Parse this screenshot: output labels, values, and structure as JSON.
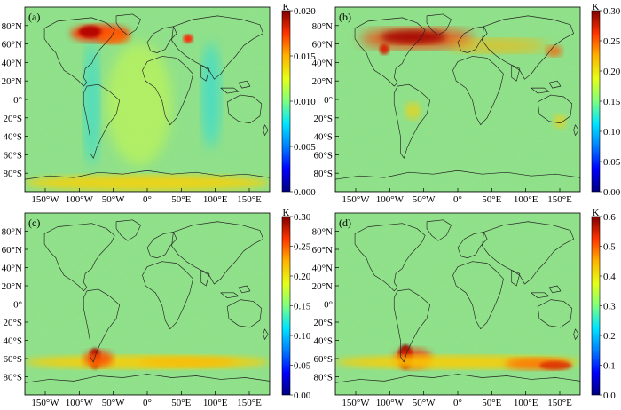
{
  "colormap": [
    "#00007f",
    "#0000ff",
    "#007fff",
    "#00e5ff",
    "#7fff7f",
    "#e5ff19",
    "#ffb300",
    "#ff3300",
    "#7f0000"
  ],
  "colors": {
    "background_field": "#8ee08a",
    "coastline": "#222222",
    "frame": "#000000"
  },
  "lat_ticks": [
    "80°N",
    "60°N",
    "40°N",
    "20°N",
    "0°",
    "20°S",
    "40°S",
    "60°S",
    "80°S"
  ],
  "lon_ticks": [
    "150°W",
    "100°W",
    "50°W",
    "0°",
    "50°E",
    "100°E",
    "150°E"
  ],
  "panels": [
    {
      "id": "a",
      "label": "(a)",
      "unit": "K",
      "colorbar_ticks": [
        "0.020",
        "0.015",
        "0.010",
        "0.005",
        "0.000"
      ],
      "range": [
        0,
        0.02
      ],
      "features": [
        "high values over North Atlantic (40–70°N)",
        "low values along western South America and Indian Ocean bands",
        "elevated values over Antarctica"
      ]
    },
    {
      "id": "b",
      "label": "(b)",
      "unit": "K",
      "colorbar_ticks": [
        "0.30",
        "0.25",
        "0.20",
        "0.15",
        "0.10",
        "0.05",
        "0.00"
      ],
      "range": [
        0,
        0.33
      ],
      "features": [
        "high values over North America, North Atlantic and northern Eurasia"
      ]
    },
    {
      "id": "c",
      "label": "(c)",
      "unit": "K",
      "colorbar_ticks": [
        "0.30",
        "0.25",
        "0.20",
        "0.15",
        "0.10",
        "0.05",
        "0.00"
      ],
      "range": [
        0,
        0.33
      ],
      "features": [
        "high values near southern South America",
        "band of elevated values along 55–65°S"
      ]
    },
    {
      "id": "d",
      "label": "(d)",
      "unit": "K",
      "colorbar_ticks": [
        "0.6",
        "0.5",
        "0.4",
        "0.3",
        "0.2",
        "0.1",
        "0.0"
      ],
      "range": [
        0,
        0.65
      ],
      "features": [
        "high values near southern South America",
        "band of elevated values along 55–65°S, strongest in South Pacific"
      ]
    }
  ]
}
